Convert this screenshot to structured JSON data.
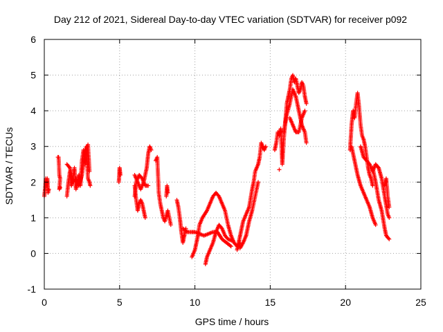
{
  "chart_data": {
    "type": "scatter",
    "title": "Day 212 of 2021, Sidereal Day-to-day VTEC variation (SDTVAR) for receiver p092",
    "xlabel": "GPS time / hours",
    "ylabel": "SDTVAR / TECUs",
    "xlim": [
      0,
      25
    ],
    "ylim": [
      -1,
      6
    ],
    "xticks": [
      0,
      5,
      10,
      15,
      20,
      25
    ],
    "yticks": [
      -1,
      0,
      1,
      2,
      3,
      4,
      5,
      6
    ],
    "grid": true,
    "marker": "+",
    "marker_color": "#ff0000",
    "series": [
      {
        "name": "SDTVAR",
        "segments": [
          [
            [
              0.0,
              1.6
            ],
            [
              0.05,
              1.8
            ],
            [
              0.1,
              2.1
            ],
            [
              0.15,
              1.9
            ],
            [
              0.2,
              2.1
            ],
            [
              0.25,
              1.7
            ],
            [
              0.3,
              1.8
            ]
          ],
          [
            [
              0.9,
              2.7
            ],
            [
              0.95,
              2.7
            ],
            [
              1.0,
              2.2
            ],
            [
              1.05,
              2.1
            ],
            [
              1.0,
              1.8
            ],
            [
              1.05,
              1.85
            ]
          ],
          [
            [
              1.5,
              1.6
            ],
            [
              1.6,
              2.0
            ],
            [
              1.7,
              2.3
            ],
            [
              1.8,
              1.9
            ],
            [
              1.9,
              2.1
            ],
            [
              2.0,
              2.4
            ],
            [
              2.1,
              1.8
            ],
            [
              2.2,
              2.0
            ],
            [
              2.3,
              2.2
            ],
            [
              2.4,
              1.9
            ],
            [
              2.5,
              2.6
            ],
            [
              2.6,
              2.9
            ],
            [
              2.7,
              2.5
            ],
            [
              2.8,
              3.0
            ],
            [
              2.9,
              2.1
            ],
            [
              3.0,
              2.0
            ],
            [
              3.05,
              1.9
            ]
          ],
          [
            [
              1.5,
              2.5
            ],
            [
              1.7,
              2.4
            ],
            [
              1.9,
              2.0
            ],
            [
              2.1,
              2.1
            ],
            [
              2.3,
              1.9
            ],
            [
              2.5,
              2.2
            ],
            [
              2.7,
              2.8
            ],
            [
              2.9,
              3.05
            ],
            [
              3.0,
              2.3
            ]
          ],
          [
            [
              4.95,
              2.0
            ],
            [
              5.0,
              2.4
            ],
            [
              5.05,
              2.2
            ]
          ],
          [
            [
              6.0,
              1.9
            ],
            [
              6.1,
              1.5
            ],
            [
              6.2,
              1.2
            ],
            [
              6.3,
              1.4
            ],
            [
              6.4,
              1.5
            ],
            [
              6.5,
              1.4
            ],
            [
              6.6,
              1.2
            ],
            [
              6.7,
              1.0
            ]
          ],
          [
            [
              6.0,
              2.2
            ],
            [
              6.2,
              2.0
            ],
            [
              6.4,
              1.8
            ],
            [
              6.6,
              2.0
            ],
            [
              6.8,
              2.4
            ],
            [
              6.9,
              2.8
            ],
            [
              7.0,
              3.0
            ],
            [
              7.1,
              2.9
            ]
          ],
          [
            [
              6.0,
              1.6
            ],
            [
              6.1,
              2.0
            ],
            [
              6.3,
              2.2
            ],
            [
              6.5,
              2.1
            ],
            [
              6.7,
              1.9
            ],
            [
              6.9,
              1.9
            ]
          ],
          [
            [
              7.4,
              2.6
            ],
            [
              7.5,
              2.7
            ],
            [
              7.6,
              1.7
            ],
            [
              7.7,
              1.4
            ],
            [
              7.8,
              1.2
            ],
            [
              7.9,
              1.0
            ],
            [
              8.0,
              0.9
            ],
            [
              8.2,
              1.2
            ],
            [
              8.4,
              0.8
            ]
          ],
          [
            [
              8.1,
              1.6
            ],
            [
              8.15,
              1.9
            ],
            [
              8.2,
              1.7
            ]
          ],
          [
            [
              8.8,
              1.5
            ],
            [
              8.9,
              1.3
            ],
            [
              9.0,
              1.0
            ],
            [
              9.1,
              0.6
            ],
            [
              9.2,
              0.3
            ],
            [
              9.3,
              0.5
            ],
            [
              9.4,
              0.7
            ]
          ],
          [
            [
              9.2,
              0.7
            ],
            [
              9.5,
              0.6
            ],
            [
              9.8,
              0.6
            ],
            [
              10.0,
              0.6
            ],
            [
              10.3,
              0.55
            ],
            [
              10.6,
              0.5
            ],
            [
              10.9,
              0.55
            ],
            [
              11.2,
              0.6
            ],
            [
              11.5,
              0.6
            ],
            [
              11.8,
              0.4
            ],
            [
              12.1,
              0.3
            ],
            [
              12.4,
              0.2
            ]
          ],
          [
            [
              9.8,
              -0.1
            ],
            [
              9.9,
              0.0
            ],
            [
              10.0,
              0.1
            ],
            [
              10.1,
              0.3
            ],
            [
              10.2,
              0.5
            ],
            [
              10.3,
              0.8
            ],
            [
              10.5,
              1.0
            ],
            [
              10.8,
              1.2
            ],
            [
              11.0,
              1.4
            ],
            [
              11.2,
              1.6
            ],
            [
              11.4,
              1.7
            ],
            [
              11.6,
              1.6
            ],
            [
              11.8,
              1.4
            ],
            [
              12.0,
              1.2
            ],
            [
              12.2,
              0.8
            ],
            [
              12.4,
              0.5
            ],
            [
              12.6,
              0.3
            ],
            [
              12.8,
              0.2
            ],
            [
              13.0,
              0.3
            ]
          ],
          [
            [
              10.7,
              -0.3
            ],
            [
              10.8,
              -0.1
            ],
            [
              11.0,
              0.1
            ],
            [
              11.2,
              0.3
            ],
            [
              11.4,
              0.6
            ],
            [
              11.6,
              0.8
            ],
            [
              11.8,
              0.7
            ],
            [
              12.0,
              0.5
            ],
            [
              12.2,
              0.4
            ],
            [
              12.5,
              0.35
            ]
          ],
          [
            [
              12.8,
              0.1
            ],
            [
              12.9,
              0.3
            ],
            [
              13.0,
              0.5
            ],
            [
              13.2,
              0.9
            ],
            [
              13.4,
              1.1
            ],
            [
              13.6,
              1.3
            ],
            [
              13.8,
              1.8
            ],
            [
              13.9,
              2.0
            ],
            [
              14.0,
              2.3
            ],
            [
              14.2,
              2.5
            ],
            [
              14.3,
              2.7
            ],
            [
              14.4,
              3.1
            ],
            [
              14.5,
              3.0
            ],
            [
              14.6,
              2.9
            ],
            [
              14.7,
              3.0
            ]
          ],
          [
            [
              13.0,
              0.15
            ],
            [
              13.2,
              0.3
            ],
            [
              13.4,
              0.5
            ],
            [
              13.6,
              0.9
            ],
            [
              13.8,
              1.2
            ],
            [
              14.0,
              1.6
            ],
            [
              14.2,
              2.0
            ]
          ],
          [
            [
              15.3,
              2.9
            ],
            [
              15.4,
              3.1
            ],
            [
              15.5,
              3.4
            ],
            [
              15.6,
              3.3
            ],
            [
              15.7,
              3.5
            ],
            [
              15.8,
              2.5
            ],
            [
              15.9,
              3.2
            ],
            [
              16.0,
              3.7
            ],
            [
              16.1,
              4.2
            ],
            [
              16.2,
              4.4
            ],
            [
              16.3,
              4.6
            ],
            [
              16.4,
              4.9
            ],
            [
              16.5,
              5.0
            ],
            [
              16.6,
              4.8
            ],
            [
              16.7,
              4.9
            ],
            [
              16.8,
              4.7
            ],
            [
              16.9,
              4.5
            ],
            [
              17.0,
              4.6
            ],
            [
              17.1,
              4.8
            ],
            [
              17.2,
              4.7
            ],
            [
              17.3,
              4.4
            ],
            [
              17.4,
              4.2
            ]
          ],
          [
            [
              15.9,
              3.4
            ],
            [
              16.1,
              3.9
            ],
            [
              16.3,
              4.2
            ],
            [
              16.5,
              4.6
            ],
            [
              16.7,
              4.4
            ],
            [
              16.9,
              4.0
            ],
            [
              17.1,
              3.6
            ],
            [
              17.3,
              3.4
            ],
            [
              17.4,
              3.1
            ]
          ],
          [
            [
              16.3,
              3.8
            ],
            [
              16.5,
              3.6
            ],
            [
              16.7,
              3.4
            ],
            [
              16.9,
              3.4
            ],
            [
              17.1,
              3.8
            ],
            [
              17.3,
              4.0
            ]
          ],
          [
            [
              15.6,
              2.35
            ]
          ],
          [
            [
              20.3,
              2.9
            ],
            [
              20.4,
              3.6
            ],
            [
              20.5,
              4.0
            ],
            [
              20.6,
              3.8
            ],
            [
              20.7,
              4.2
            ],
            [
              20.8,
              4.5
            ],
            [
              20.9,
              4.1
            ],
            [
              21.0,
              3.6
            ],
            [
              21.1,
              3.3
            ],
            [
              21.2,
              3.2
            ],
            [
              21.3,
              3.0
            ],
            [
              21.4,
              2.7
            ],
            [
              21.5,
              2.4
            ],
            [
              21.6,
              2.2
            ],
            [
              21.7,
              2.1
            ],
            [
              21.8,
              1.9
            ]
          ],
          [
            [
              20.4,
              3.0
            ],
            [
              20.6,
              2.6
            ],
            [
              20.8,
              2.2
            ],
            [
              21.0,
              1.9
            ],
            [
              21.2,
              1.7
            ],
            [
              21.4,
              1.5
            ],
            [
              21.6,
              1.3
            ],
            [
              21.8,
              1.0
            ],
            [
              22.0,
              0.8
            ]
          ],
          [
            [
              21.0,
              3.0
            ],
            [
              21.2,
              2.7
            ],
            [
              21.4,
              2.6
            ],
            [
              21.6,
              2.5
            ],
            [
              21.8,
              2.3
            ],
            [
              22.0,
              2.5
            ],
            [
              22.2,
              2.4
            ],
            [
              22.4,
              2.1
            ],
            [
              22.6,
              1.6
            ],
            [
              22.8,
              1.1
            ],
            [
              22.9,
              1.0
            ]
          ],
          [
            [
              21.8,
              2.4
            ],
            [
              22.0,
              2.0
            ],
            [
              22.2,
              1.5
            ],
            [
              22.4,
              1.2
            ],
            [
              22.6,
              0.7
            ],
            [
              22.7,
              0.5
            ],
            [
              22.8,
              0.45
            ],
            [
              22.9,
              0.4
            ]
          ],
          [
            [
              22.6,
              1.9
            ],
            [
              22.7,
              2.1
            ],
            [
              22.8,
              1.6
            ],
            [
              22.9,
              1.3
            ]
          ]
        ]
      }
    ]
  }
}
